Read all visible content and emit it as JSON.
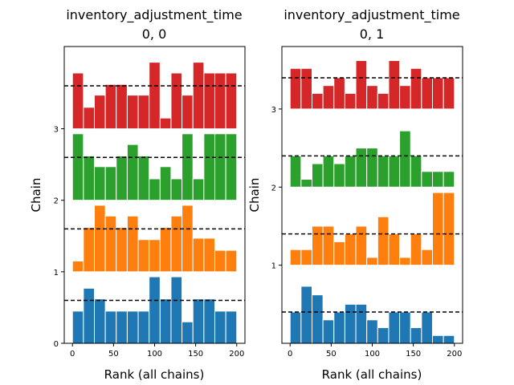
{
  "chart_data": [
    {
      "type": "bar",
      "title_line1": "inventory_adjustment_time",
      "title_line2": "0, 0",
      "xlabel": "Rank (all chains)",
      "ylabel": "Chain",
      "xlim": [
        -10,
        210
      ],
      "ylim": [
        0,
        4.15
      ],
      "xticks": [
        0,
        50,
        100,
        150,
        200
      ],
      "yticks": [
        0,
        1,
        2,
        3
      ],
      "bin_edges": [
        0,
        13.33,
        26.67,
        40,
        53.33,
        66.67,
        80,
        93.33,
        106.67,
        120,
        133.33,
        146.67,
        160,
        173.33,
        186.67,
        200
      ],
      "reference_level": 0.6,
      "series": [
        {
          "chain": 0,
          "color": "#1f77b4",
          "values": [
            0.45,
            0.77,
            0.62,
            0.45,
            0.45,
            0.45,
            0.45,
            0.93,
            0.62,
            0.93,
            0.3,
            0.62,
            0.62,
            0.45,
            0.45
          ]
        },
        {
          "chain": 1,
          "color": "#ff7f0e",
          "values": [
            0.15,
            0.62,
            0.93,
            0.78,
            0.62,
            0.78,
            0.45,
            0.45,
            0.62,
            0.78,
            0.93,
            0.47,
            0.47,
            0.3,
            0.3
          ]
        },
        {
          "chain": 2,
          "color": "#2ca02c",
          "values": [
            0.93,
            0.62,
            0.47,
            0.47,
            0.62,
            0.78,
            0.62,
            0.3,
            0.47,
            0.3,
            0.93,
            0.3,
            0.93,
            0.93,
            0.93
          ]
        },
        {
          "chain": 3,
          "color": "#d62728",
          "values": [
            0.78,
            0.3,
            0.47,
            0.62,
            0.62,
            0.47,
            0.47,
            0.93,
            0.15,
            0.78,
            0.47,
            0.93,
            0.78,
            0.78,
            0.78
          ]
        }
      ]
    },
    {
      "type": "bar",
      "title_line1": "inventory_adjustment_time",
      "title_line2": "0, 1",
      "xlabel": "Rank (all chains)",
      "ylabel": "Chain",
      "xlim": [
        -10,
        210
      ],
      "ylim": [
        0,
        3.8
      ],
      "xticks": [
        0,
        50,
        100,
        150,
        200
      ],
      "yticks": [
        1,
        2,
        3
      ],
      "bin_edges": [
        0,
        13.33,
        26.67,
        40,
        53.33,
        66.67,
        80,
        93.33,
        106.67,
        120,
        133.33,
        146.67,
        160,
        173.33,
        186.67,
        200
      ],
      "reference_level": 0.4,
      "series": [
        {
          "chain": 0,
          "color": "#1f77b4",
          "values": [
            0.4,
            0.73,
            0.62,
            0.3,
            0.4,
            0.5,
            0.5,
            0.3,
            0.2,
            0.4,
            0.4,
            0.2,
            0.4,
            0.1,
            0.1
          ]
        },
        {
          "chain": 1,
          "color": "#ff7f0e",
          "values": [
            0.2,
            0.2,
            0.5,
            0.5,
            0.3,
            0.4,
            0.5,
            0.1,
            0.62,
            0.4,
            0.1,
            0.4,
            0.2,
            0.93,
            0.93
          ]
        },
        {
          "chain": 2,
          "color": "#2ca02c",
          "values": [
            0.4,
            0.1,
            0.3,
            0.4,
            0.3,
            0.4,
            0.5,
            0.5,
            0.4,
            0.4,
            0.72,
            0.4,
            0.2,
            0.2,
            0.2
          ]
        },
        {
          "chain": 3,
          "color": "#d62728",
          "values": [
            0.52,
            0.52,
            0.2,
            0.3,
            0.4,
            0.2,
            0.62,
            0.3,
            0.2,
            0.62,
            0.3,
            0.52,
            0.4,
            0.4,
            0.4
          ]
        }
      ]
    }
  ]
}
